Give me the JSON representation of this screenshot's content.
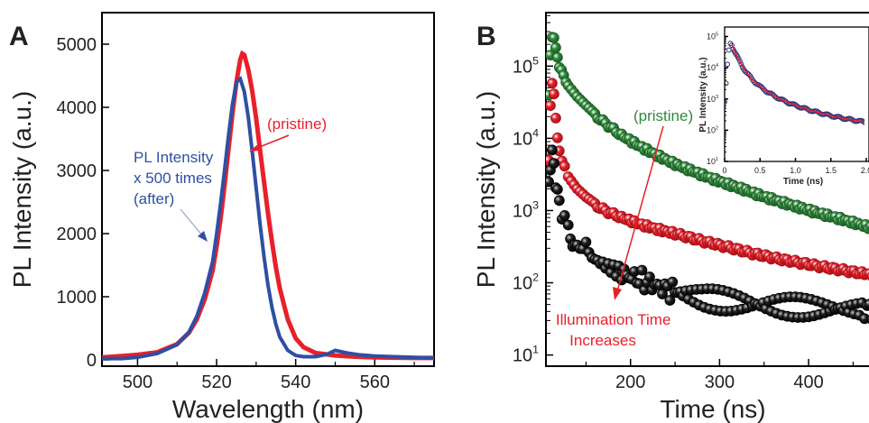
{
  "panels": {
    "A": {
      "label": "A"
    },
    "B": {
      "label": "B"
    }
  },
  "colors": {
    "red": "#e8202a",
    "blue": "#2e4fa3",
    "green": "#2f8b3a",
    "black": "#111111",
    "navy": "#2a2f7a"
  },
  "chart_data": [
    {
      "type": "line",
      "panel": "A",
      "xlabel": "Wavelength (nm)",
      "ylabel": "PL Intensity (a.u.)",
      "xlim": [
        491,
        575
      ],
      "ylim": [
        -100,
        5500
      ],
      "xticks": [
        500,
        520,
        540,
        560
      ],
      "yticks": [
        0,
        1000,
        2000,
        3000,
        4000,
        5000
      ],
      "grid": false,
      "series": [
        {
          "name": "(pristine)",
          "color": "#e8202a",
          "x": [
            491,
            496,
            500,
            505,
            510,
            513,
            515,
            517,
            519,
            520,
            521,
            522,
            523,
            524,
            525,
            526,
            526.5,
            527,
            528,
            529,
            530,
            531,
            532,
            533,
            534,
            535,
            536,
            538,
            540,
            542,
            545,
            550,
            555,
            560,
            565,
            570,
            575
          ],
          "y": [
            40,
            60,
            80,
            120,
            250,
            430,
            640,
            960,
            1420,
            1790,
            2230,
            2760,
            3330,
            3900,
            4400,
            4760,
            4850,
            4830,
            4600,
            4260,
            3820,
            3320,
            2820,
            2320,
            1870,
            1460,
            1130,
            640,
            340,
            200,
            110,
            70,
            50,
            40,
            35,
            30,
            30
          ]
        },
        {
          "name": "PL Intensity x 500 times (after)",
          "color": "#2e4fa3",
          "x": [
            491,
            496,
            500,
            505,
            510,
            513,
            515,
            517,
            519,
            520,
            521,
            522,
            523,
            524,
            525,
            526,
            527,
            528,
            529,
            530,
            531,
            532,
            533,
            534,
            535,
            536,
            538,
            540,
            542,
            545,
            548,
            550,
            553,
            556,
            560,
            565,
            570,
            575
          ],
          "y": [
            20,
            20,
            40,
            100,
            240,
            440,
            690,
            1060,
            1560,
            1990,
            2470,
            3000,
            3550,
            4050,
            4400,
            4450,
            4250,
            3850,
            3300,
            2720,
            2150,
            1630,
            1180,
            830,
            560,
            360,
            150,
            70,
            50,
            50,
            90,
            150,
            110,
            80,
            60,
            50,
            40,
            30
          ]
        }
      ],
      "annotations": [
        {
          "text": "(pristine)",
          "color": "#e8202a"
        },
        {
          "lines": [
            "PL Intensity",
            "x 500 times",
            "(after)"
          ],
          "color": "#2e4fa3"
        }
      ]
    },
    {
      "type": "scatter",
      "panel": "B",
      "xlabel": "Time (ns)",
      "ylabel": "PL Intensity (a.u.)",
      "yscale": "log",
      "xlim": [
        105,
        480
      ],
      "ylim": [
        7,
        550000
      ],
      "xticks": [
        200,
        300,
        400
      ],
      "yticks": [
        10,
        100,
        1000,
        10000,
        100000
      ],
      "ytick_labels": [
        {
          "base": "10",
          "exp": "1"
        },
        {
          "base": "10",
          "exp": "2"
        },
        {
          "base": "10",
          "exp": "3"
        },
        {
          "base": "10",
          "exp": "4"
        },
        {
          "base": "10",
          "exp": "5"
        }
      ],
      "grid": false,
      "series": [
        {
          "name": "(pristine)",
          "color": "#2f8b3a",
          "x": [
            108,
            110,
            112,
            114,
            116,
            118,
            120,
            125,
            130,
            140,
            150,
            160,
            175,
            190,
            210,
            230,
            250,
            270,
            290,
            310,
            330,
            350,
            370,
            390,
            410,
            430,
            450,
            470,
            480
          ],
          "y": [
            40000,
            150000,
            260000,
            240000,
            170000,
            130000,
            100000,
            72000,
            55000,
            38000,
            28000,
            21000,
            15000,
            11000,
            7800,
            5800,
            4400,
            3500,
            2800,
            2300,
            1900,
            1550,
            1300,
            1100,
            930,
            800,
            680,
            580,
            540
          ]
        },
        {
          "x": [
            108,
            110,
            112,
            114,
            116,
            118,
            120,
            123,
            126,
            130,
            140,
            150,
            160,
            175,
            190,
            210,
            230,
            250,
            280,
            310,
            340,
            370,
            400,
            430,
            460,
            480
          ],
          "y": [
            5000,
            30000,
            60000,
            40000,
            18000,
            10000,
            7000,
            5000,
            3900,
            3000,
            2000,
            1500,
            1200,
            950,
            800,
            650,
            550,
            480,
            380,
            310,
            250,
            210,
            180,
            155,
            135,
            125
          ]
        },
        {
          "x": [
            108,
            110,
            112,
            114,
            116,
            118,
            120,
            123,
            126,
            130,
            135,
            140,
            150,
            160,
            175,
            190,
            210,
            230,
            250,
            280,
            310,
            340,
            370,
            400,
            430,
            460,
            480
          ],
          "y": [
            2500,
            4500,
            6000,
            4200,
            2500,
            1700,
            1200,
            900,
            700,
            550,
            420,
            350,
            260,
            210,
            165,
            135,
            110,
            90,
            75,
            62,
            55,
            50,
            47,
            45,
            44,
            43,
            42
          ]
        }
      ],
      "annotations": [
        {
          "text": "(pristine)",
          "color": "#2f8b3a"
        },
        {
          "lines": [
            "Illumination Time",
            "Increases"
          ],
          "color": "#e8202a"
        }
      ]
    },
    {
      "type": "scatter",
      "panel": "B-inset",
      "xlabel": "Time (ns)",
      "ylabel": "PL Intensity (a.u.)",
      "yscale": "log",
      "xlim": [
        0,
        2.0
      ],
      "ylim": [
        10,
        200000
      ],
      "xticks": [
        0,
        0.5,
        1.0,
        1.5,
        2.0
      ],
      "xtick_labels": [
        "0",
        "0.5",
        "1.0",
        "1.5",
        "2.0"
      ],
      "yticks": [
        10,
        100,
        1000,
        10000,
        100000
      ],
      "ytick_labels": [
        {
          "base": "10",
          "exp": "1"
        },
        {
          "base": "10",
          "exp": "2"
        },
        {
          "base": "10",
          "exp": "3"
        },
        {
          "base": "10",
          "exp": "4"
        },
        {
          "base": "10",
          "exp": "5"
        }
      ],
      "grid": false,
      "series": [
        {
          "color": "#2a2f7a",
          "x": [
            0.0,
            0.02,
            0.04,
            0.06,
            0.08,
            0.1,
            0.12,
            0.15,
            0.2,
            0.25,
            0.3,
            0.4,
            0.5,
            0.6,
            0.7,
            0.8,
            0.9,
            1.0,
            1.1,
            1.2,
            1.3,
            1.4,
            1.5,
            1.6,
            1.7,
            1.8,
            1.9,
            2.0
          ],
          "y": [
            800,
            3000,
            12000,
            35000,
            60000,
            55000,
            42000,
            30000,
            18000,
            11000,
            7500,
            4000,
            2500,
            1700,
            1250,
            950,
            760,
            620,
            520,
            440,
            380,
            330,
            290,
            260,
            235,
            215,
            195,
            180
          ]
        },
        {
          "color": "#e8202a",
          "x": [
            0.1,
            0.15,
            0.2,
            0.3,
            0.4,
            0.5,
            0.6,
            0.7,
            0.8,
            0.9,
            1.0,
            1.1,
            1.2,
            1.3,
            1.4,
            1.5,
            1.6,
            1.7,
            1.8,
            1.9,
            2.0
          ],
          "y": [
            55000,
            30000,
            18000,
            7500,
            4000,
            2500,
            1700,
            1250,
            950,
            760,
            620,
            520,
            440,
            380,
            330,
            290,
            260,
            235,
            215,
            195,
            180
          ]
        }
      ]
    }
  ]
}
